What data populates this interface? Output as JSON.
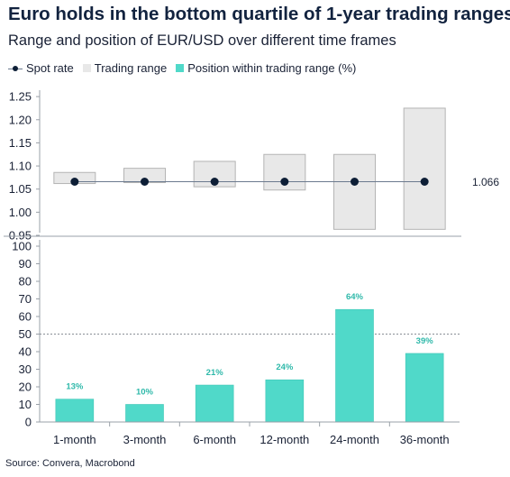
{
  "title": "Euro holds in the bottom quartile of 1-year trading ranges",
  "subtitle": "Range and position of EUR/USD over different time frames",
  "legend": {
    "spot": "Spot rate",
    "range": "Trading range",
    "position": "Position within trading range (%)"
  },
  "source": "Source: Convera, Macrobond",
  "colors": {
    "range_fill": "#e8e8e8",
    "range_stroke": "#b4b4b4",
    "spot": "#0d1e36",
    "bar": "#50d9c9",
    "bar_label": "#2fb9aa",
    "text": "#1a2236"
  },
  "chart_data": [
    {
      "type": "range-dot",
      "categories": [
        "1-month",
        "3-month",
        "6-month",
        "12-month",
        "24-month",
        "36-month"
      ],
      "series": [
        {
          "name": "Trading range",
          "low": [
            1.062,
            1.064,
            1.055,
            1.048,
            0.963,
            0.963
          ],
          "high": [
            1.086,
            1.095,
            1.11,
            1.125,
            1.125,
            1.225
          ]
        },
        {
          "name": "Spot rate",
          "values": [
            1.066,
            1.066,
            1.066,
            1.066,
            1.066,
            1.066
          ]
        }
      ],
      "spot_label": "1.066",
      "yticks": [
        "1.25",
        "1.20",
        "1.15",
        "1.10",
        "1.05",
        "1.00",
        "0.95"
      ],
      "ylim": [
        0.95,
        1.26
      ],
      "grid": false
    },
    {
      "type": "bar",
      "categories": [
        "1-month",
        "3-month",
        "6-month",
        "12-month",
        "24-month",
        "36-month"
      ],
      "series": [
        {
          "name": "Position within trading range (%)",
          "values": [
            13,
            10,
            21,
            24,
            64,
            39
          ]
        }
      ],
      "data_labels": [
        "13%",
        "10%",
        "21%",
        "24%",
        "64%",
        "39%"
      ],
      "yticks": [
        "100",
        "90",
        "80",
        "70",
        "60",
        "50",
        "40",
        "30",
        "20",
        "10",
        "0"
      ],
      "ylim": [
        0,
        100
      ],
      "reference_line": 50,
      "grid": false
    }
  ]
}
